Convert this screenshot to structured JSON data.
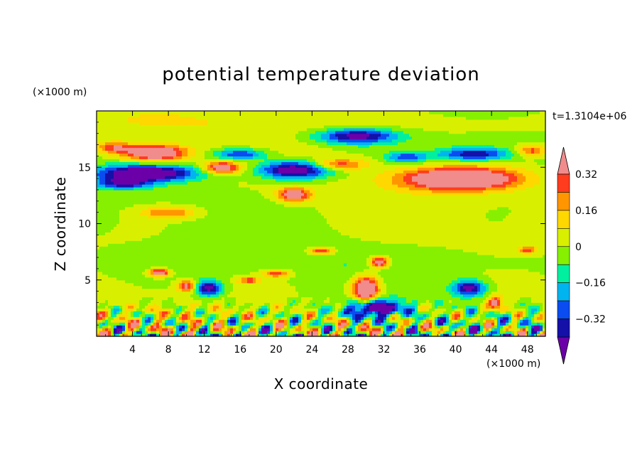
{
  "chart_data": {
    "type": "heatmap",
    "title": "potential temperature deviation",
    "xlabel": "X coordinate",
    "ylabel": "Z coordinate",
    "x_units": "(×1000 m)",
    "y_units": "(×1000 m)",
    "time_label": "t=1.3104e+06",
    "xlim": [
      0,
      50
    ],
    "ylim": [
      0,
      20
    ],
    "x_ticks": [
      4,
      8,
      12,
      16,
      20,
      24,
      28,
      32,
      36,
      40,
      44,
      48
    ],
    "y_ticks": [
      5,
      10,
      15
    ],
    "colorbar": {
      "levels": [
        -0.4,
        -0.32,
        -0.24,
        -0.16,
        -0.08,
        0,
        0.08,
        0.16,
        0.24,
        0.32,
        0.4
      ],
      "colors": [
        "#6c00a8",
        "#1410a8",
        "#0a4cf0",
        "#00b4f0",
        "#00f0a0",
        "#86f000",
        "#d8f000",
        "#ffd800",
        "#ff9600",
        "#ff3c1e",
        "#f08c8c"
      ],
      "tick_labels": [
        {
          "value": 0.32,
          "label": "0.32"
        },
        {
          "value": 0.16,
          "label": "0.16"
        },
        {
          "value": 0,
          "label": "0"
        },
        {
          "value": -0.16,
          "label": "−0.16"
        },
        {
          "value": -0.32,
          "label": "−0.32"
        }
      ]
    },
    "features": [
      {
        "x": 6.5,
        "z": 16.3,
        "sx": 3.5,
        "sz": 0.7,
        "v": 0.55
      },
      {
        "x": 5.5,
        "z": 14.5,
        "sx": 5.5,
        "sz": 0.7,
        "v": -0.55
      },
      {
        "x": 3,
        "z": 13.6,
        "sx": 3,
        "sz": 0.5,
        "v": -0.35
      },
      {
        "x": 2,
        "z": 16.8,
        "sx": 2,
        "sz": 0.5,
        "v": 0.3
      },
      {
        "x": 22,
        "z": 14.8,
        "sx": 4,
        "sz": 0.8,
        "v": -0.55
      },
      {
        "x": 16,
        "z": 16.2,
        "sx": 3,
        "sz": 0.5,
        "v": -0.35
      },
      {
        "x": 14,
        "z": 15,
        "sx": 2,
        "sz": 0.5,
        "v": 0.45
      },
      {
        "x": 22,
        "z": 12.6,
        "sx": 1.8,
        "sz": 0.6,
        "v": 0.45
      },
      {
        "x": 29,
        "z": 17.8,
        "sx": 4.5,
        "sz": 0.7,
        "v": -0.45
      },
      {
        "x": 27,
        "z": 15.3,
        "sx": 3,
        "sz": 0.5,
        "v": 0.3
      },
      {
        "x": 34.5,
        "z": 15.9,
        "sx": 2.2,
        "sz": 0.5,
        "v": -0.3
      },
      {
        "x": 42,
        "z": 16.2,
        "sx": 4,
        "sz": 0.6,
        "v": -0.4
      },
      {
        "x": 40.5,
        "z": 14,
        "sx": 6.5,
        "sz": 1.0,
        "v": 0.6
      },
      {
        "x": 48.5,
        "z": 16.5,
        "sx": 1.6,
        "sz": 0.5,
        "v": 0.3
      },
      {
        "x": 8,
        "z": 11,
        "sx": 3,
        "sz": 0.5,
        "v": 0.25
      },
      {
        "x": 30,
        "z": 4.2,
        "sx": 1.5,
        "sz": 1.2,
        "v": 0.6
      },
      {
        "x": 31.5,
        "z": 6.6,
        "sx": 1.0,
        "sz": 0.5,
        "v": 0.5
      },
      {
        "x": 7,
        "z": 5.7,
        "sx": 1.2,
        "sz": 0.35,
        "v": 0.45
      },
      {
        "x": 25,
        "z": 7.6,
        "sx": 1.4,
        "sz": 0.3,
        "v": 0.35
      },
      {
        "x": 20,
        "z": 5.6,
        "sx": 1.5,
        "sz": 0.3,
        "v": 0.3
      },
      {
        "x": 12.5,
        "z": 4.3,
        "sx": 1.5,
        "sz": 0.7,
        "v": -0.45
      },
      {
        "x": 41.5,
        "z": 4.3,
        "sx": 1.8,
        "sz": 0.7,
        "v": -0.45
      },
      {
        "x": 31,
        "z": 2.5,
        "sx": 3,
        "sz": 0.8,
        "v": -0.55
      },
      {
        "x": 44.5,
        "z": 3.0,
        "sx": 0.8,
        "sz": 0.6,
        "v": 0.45
      },
      {
        "x": 17,
        "z": 5,
        "sx": 1.2,
        "sz": 0.3,
        "v": 0.3
      },
      {
        "x": 10,
        "z": 4.5,
        "sx": 1.0,
        "sz": 0.5,
        "v": 0.4
      },
      {
        "x": 48,
        "z": 7.7,
        "sx": 1.0,
        "sz": 0.3,
        "v": 0.3
      }
    ]
  }
}
